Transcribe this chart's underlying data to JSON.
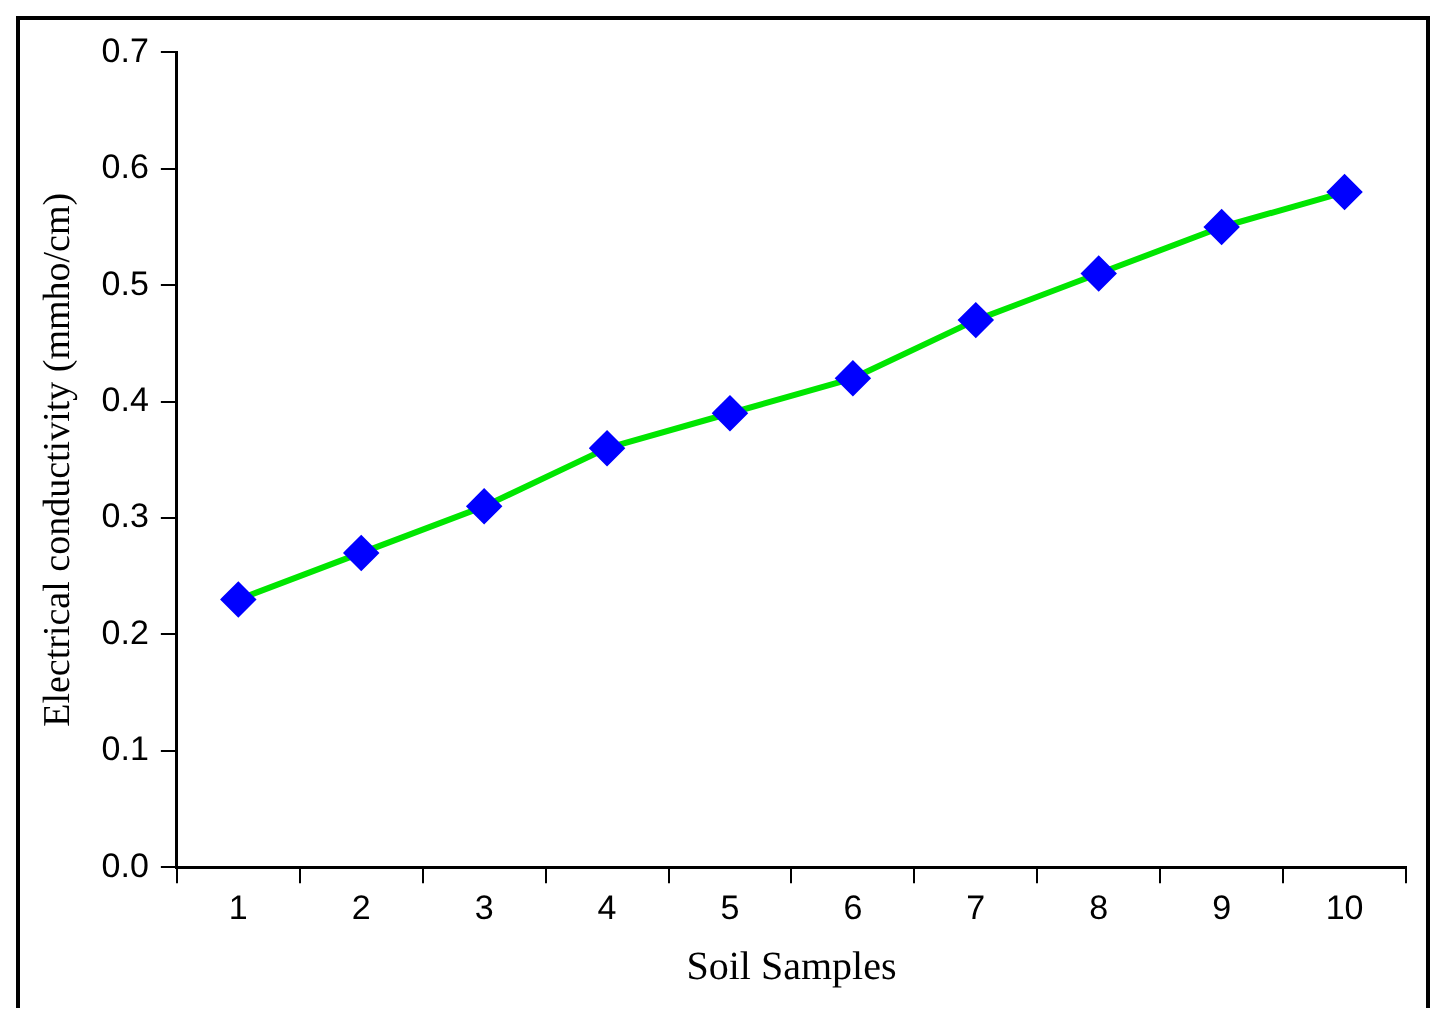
{
  "chart_data": {
    "type": "line",
    "xlabel": "Soil Samples",
    "ylabel": "Electrical conductivity (mmho/cm)",
    "categories": [
      "1",
      "2",
      "3",
      "4",
      "5",
      "6",
      "7",
      "8",
      "9",
      "10"
    ],
    "series": [
      {
        "color": "#00e600",
        "colors": [
          "#0000ff",
          "#0000ff",
          "#0000ff",
          "#0000ff",
          "#0000ff",
          "#0000ff",
          "#0000ff",
          "#0000ff",
          "#0000ff",
          "#0000ff"
        ],
        "values": [
          0.23,
          0.27,
          0.31,
          0.36,
          0.39,
          0.42,
          0.47,
          0.51,
          0.55,
          0.58
        ]
      }
    ],
    "ylim": [
      0,
      0.7
    ],
    "yticks": [
      {
        "value": 0,
        "label": "0.0"
      },
      0.1,
      0.2,
      0.3,
      0.4,
      0.5,
      0.6,
      0.7
    ],
    "grid": false,
    "legend": false,
    "marker": "diamond",
    "line_style": "solid"
  }
}
